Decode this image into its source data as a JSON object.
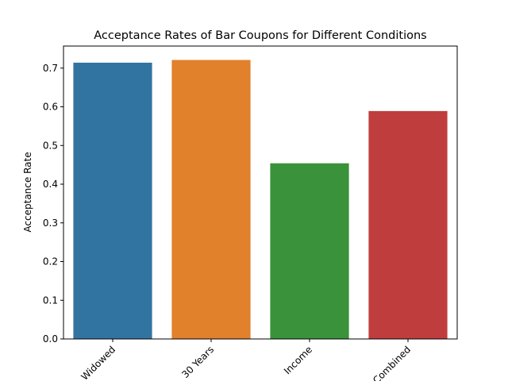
{
  "chart_data": {
    "type": "bar",
    "title": "Acceptance Rates of Bar Coupons for Different Conditions",
    "xlabel": "",
    "ylabel": "Acceptance Rate",
    "categories": [
      "Widowed",
      "30 Years",
      "Income",
      "Combined"
    ],
    "values": [
      0.714,
      0.721,
      0.454,
      0.589
    ],
    "colors": [
      "#3274a1",
      "#e1812c",
      "#3a923a",
      "#c03d3e"
    ],
    "ylim": [
      0,
      0.757
    ],
    "yticks": [
      0.0,
      0.1,
      0.2,
      0.3,
      0.4,
      0.5,
      0.6,
      0.7
    ],
    "ytick_labels": [
      "0.0",
      "0.1",
      "0.2",
      "0.3",
      "0.4",
      "0.5",
      "0.6",
      "0.7"
    ],
    "grid": false,
    "legend": "none"
  }
}
